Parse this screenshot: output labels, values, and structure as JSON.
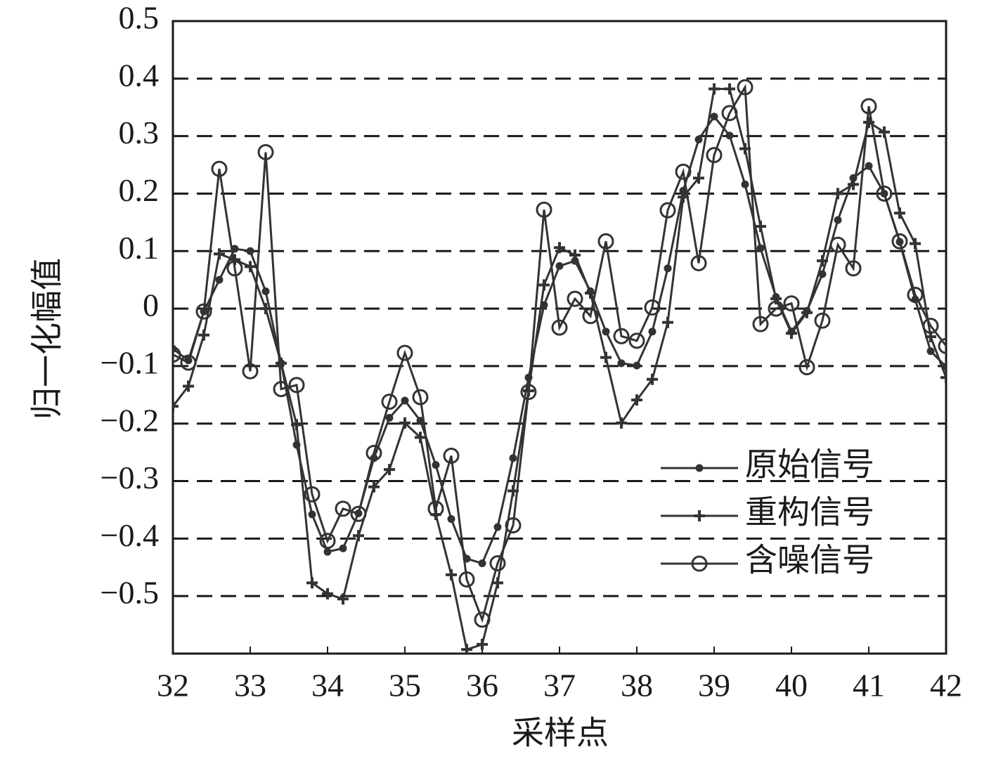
{
  "chart_data": {
    "type": "line",
    "x_label": "采样点",
    "y_label": "归一化幅值",
    "xlim": [
      32,
      42
    ],
    "ylim": [
      -0.6,
      0.5
    ],
    "xticks": [
      32,
      33,
      34,
      35,
      36,
      37,
      38,
      39,
      40,
      41,
      42
    ],
    "yticks": [
      0.5,
      0.4,
      0.3,
      0.2,
      0.1,
      0,
      {
        "value": -0.1,
        "label": "−0.1"
      },
      {
        "value": -0.2,
        "label": "−0.2"
      },
      {
        "value": -0.3,
        "label": "−0.3"
      },
      {
        "value": -0.4,
        "label": "−0.4"
      },
      {
        "value": -0.5,
        "label": "−0.5"
      }
    ],
    "grid": true,
    "legend": "lower right",
    "x": [
      32,
      32.2,
      32.4,
      32.6,
      32.8,
      33,
      33.2,
      33.4,
      33.6,
      33.8,
      34,
      34.2,
      34.4,
      34.6,
      34.8,
      35,
      35.2,
      35.4,
      35.6,
      35.8,
      36,
      36.2,
      36.4,
      36.6,
      36.8,
      37,
      37.2,
      37.4,
      37.6,
      37.8,
      38,
      38.2,
      38.4,
      38.6,
      38.8,
      39,
      39.2,
      39.4,
      39.6,
      39.8,
      40,
      40.2,
      40.4,
      40.6,
      40.8,
      41,
      41.2,
      41.4,
      41.6,
      41.8,
      42
    ],
    "series": [
      {
        "name": "原始信号",
        "color": "#333333",
        "marker": "dot",
        "values": [
          -0.07,
          -0.09,
          -0.005,
          0.05,
          0.104,
          0.1,
          0.03,
          -0.095,
          -0.237,
          -0.358,
          -0.423,
          -0.417,
          -0.356,
          -0.26,
          -0.19,
          -0.16,
          -0.195,
          -0.272,
          -0.366,
          -0.435,
          -0.443,
          -0.38,
          -0.26,
          -0.12,
          0.006,
          0.074,
          0.083,
          0.03,
          -0.04,
          -0.095,
          -0.099,
          -0.04,
          0.07,
          0.205,
          0.294,
          0.334,
          0.301,
          0.216,
          0.105,
          0.02,
          -0.04,
          -0.004,
          0.06,
          0.154,
          0.227,
          0.248,
          0.2,
          0.116,
          0.016,
          -0.074,
          -0.101
        ]
      },
      {
        "name": "重构信号",
        "color": "#333333",
        "marker": "plus",
        "values": [
          -0.17,
          -0.135,
          -0.046,
          0.095,
          0.085,
          0.073,
          0.0,
          -0.095,
          -0.202,
          -0.477,
          -0.496,
          -0.505,
          -0.395,
          -0.31,
          -0.28,
          -0.199,
          -0.224,
          -0.358,
          -0.463,
          -0.593,
          -0.584,
          -0.477,
          -0.317,
          -0.143,
          0.041,
          0.106,
          0.093,
          0.027,
          -0.085,
          -0.199,
          -0.159,
          -0.123,
          -0.024,
          0.194,
          0.227,
          0.382,
          0.382,
          0.278,
          0.143,
          0.017,
          -0.043,
          -0.007,
          0.083,
          0.2,
          0.216,
          0.324,
          0.307,
          0.166,
          0.113,
          -0.049,
          -0.12
        ]
      },
      {
        "name": "含噪信号",
        "color": "#333333",
        "marker": "circle",
        "values": [
          -0.08,
          -0.094,
          -0.005,
          0.243,
          0.07,
          -0.109,
          0.272,
          -0.14,
          -0.133,
          -0.323,
          -0.404,
          -0.348,
          -0.357,
          -0.251,
          -0.162,
          -0.077,
          -0.154,
          -0.348,
          -0.256,
          -0.471,
          -0.541,
          -0.443,
          -0.377,
          -0.145,
          0.172,
          -0.033,
          0.017,
          -0.013,
          0.117,
          -0.048,
          -0.056,
          0.002,
          0.171,
          0.238,
          0.079,
          0.267,
          0.34,
          0.385,
          -0.027,
          0.0,
          0.009,
          -0.102,
          -0.021,
          0.111,
          0.07,
          0.352,
          0.2,
          0.117,
          0.024,
          -0.03,
          -0.065
        ]
      }
    ]
  }
}
